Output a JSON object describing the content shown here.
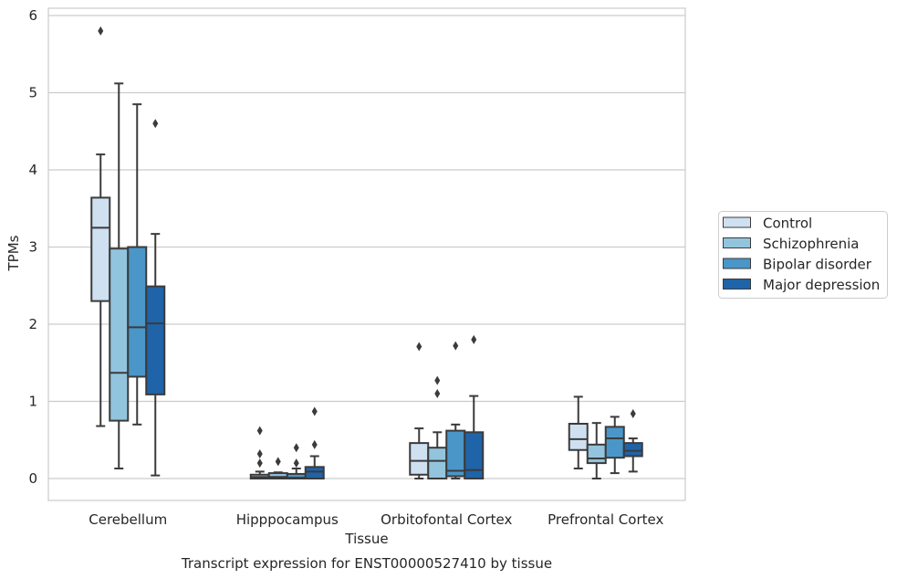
{
  "chart_data": {
    "type": "box",
    "caption": "Transcript expression for ENST00000527410 by tissue",
    "xlabel": "Tissue",
    "ylabel": "TPMs",
    "ylim": [
      -0.28,
      6.1
    ],
    "yticks": [
      0,
      1,
      2,
      3,
      4,
      5,
      6
    ],
    "grid": true,
    "legend_position": "right",
    "categories": [
      "Cerebellum",
      "Hipppocampus",
      "Orbitofontal Cortex",
      "Prefrontal Cortex"
    ],
    "series": [
      {
        "name": "Control",
        "color": "#cfe0f1",
        "boxes": [
          {
            "min": 0.68,
            "q1": 2.3,
            "median": 3.25,
            "q3": 3.64,
            "max": 4.2,
            "outliers": [
              5.8
            ]
          },
          {
            "min": 0.0,
            "q1": 0.0,
            "median": 0.02,
            "q3": 0.05,
            "max": 0.09,
            "outliers": [
              0.2,
              0.32,
              0.62
            ]
          },
          {
            "min": 0.0,
            "q1": 0.05,
            "median": 0.23,
            "q3": 0.46,
            "max": 0.65,
            "outliers": [
              1.71
            ]
          },
          {
            "min": 0.13,
            "q1": 0.37,
            "median": 0.51,
            "q3": 0.71,
            "max": 1.06,
            "outliers": []
          }
        ]
      },
      {
        "name": "Schizophrenia",
        "color": "#93c4de",
        "boxes": [
          {
            "min": 0.13,
            "q1": 0.75,
            "median": 1.37,
            "q3": 2.98,
            "max": 5.12,
            "outliers": []
          },
          {
            "min": 0.0,
            "q1": 0.0,
            "median": 0.02,
            "q3": 0.07,
            "max": 0.08,
            "outliers": [
              0.22
            ]
          },
          {
            "min": 0.0,
            "q1": 0.0,
            "median": 0.23,
            "q3": 0.4,
            "max": 0.6,
            "outliers": [
              1.1,
              1.27
            ]
          },
          {
            "min": 0.0,
            "q1": 0.2,
            "median": 0.26,
            "q3": 0.44,
            "max": 0.72,
            "outliers": []
          }
        ]
      },
      {
        "name": "Bipolar disorder",
        "color": "#4a96c8",
        "boxes": [
          {
            "min": 0.7,
            "q1": 1.32,
            "median": 1.96,
            "q3": 3.0,
            "max": 4.85,
            "outliers": []
          },
          {
            "min": 0.0,
            "q1": 0.0,
            "median": 0.01,
            "q3": 0.06,
            "max": 0.13,
            "outliers": [
              0.2,
              0.4
            ]
          },
          {
            "min": 0.0,
            "q1": 0.03,
            "median": 0.1,
            "q3": 0.62,
            "max": 0.7,
            "outliers": [
              1.72
            ]
          },
          {
            "min": 0.07,
            "q1": 0.27,
            "median": 0.52,
            "q3": 0.67,
            "max": 0.8,
            "outliers": []
          }
        ]
      },
      {
        "name": "Major depression",
        "color": "#1f63a8",
        "boxes": [
          {
            "min": 0.04,
            "q1": 1.09,
            "median": 2.01,
            "q3": 2.49,
            "max": 3.17,
            "outliers": [
              4.6
            ]
          },
          {
            "min": 0.0,
            "q1": 0.0,
            "median": 0.09,
            "q3": 0.15,
            "max": 0.29,
            "outliers": [
              0.44,
              0.87
            ]
          },
          {
            "min": 0.0,
            "q1": 0.0,
            "median": 0.11,
            "q3": 0.6,
            "max": 1.07,
            "outliers": [
              1.8
            ]
          },
          {
            "min": 0.09,
            "q1": 0.29,
            "median": 0.36,
            "q3": 0.46,
            "max": 0.52,
            "outliers": [
              0.84
            ]
          }
        ]
      }
    ]
  }
}
